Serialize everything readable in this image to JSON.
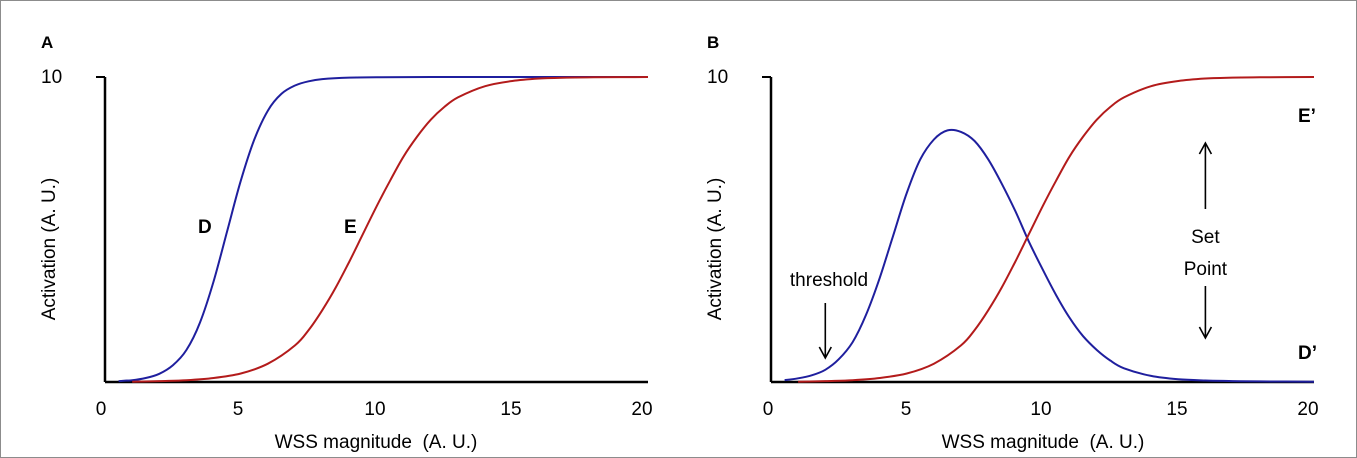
{
  "chart_data": [
    {
      "type": "line",
      "panel": "A",
      "xlabel": "WSS magnitude  (A. U.)",
      "ylabel": "Activation (A. U.)",
      "xlim": [
        0,
        20
      ],
      "ylim": [
        0,
        10
      ],
      "x_ticks": [
        "0",
        "5",
        "10",
        "15",
        "20"
      ],
      "y_ticks": [
        "10"
      ],
      "grid": false,
      "series": [
        {
          "name": "D",
          "color": "#1f1f9e",
          "x": [
            0.5,
            1,
            1.5,
            2,
            2.5,
            3,
            3.5,
            4,
            4.5,
            5,
            5.5,
            6,
            6.5,
            7,
            7.5,
            8,
            9,
            10,
            12,
            15,
            20
          ],
          "y": [
            0.03,
            0.06,
            0.13,
            0.27,
            0.55,
            1.05,
            1.95,
            3.3,
            4.95,
            6.6,
            7.95,
            8.9,
            9.45,
            9.72,
            9.86,
            9.93,
            9.98,
            9.99,
            10,
            10,
            10
          ]
        },
        {
          "name": "E",
          "color": "#b31b1b",
          "x": [
            1,
            2,
            3,
            4,
            5,
            6,
            7,
            7.5,
            8,
            8.5,
            9,
            9.5,
            10,
            10.5,
            11,
            11.5,
            12,
            12.5,
            13,
            14,
            15,
            16,
            17,
            18,
            20
          ],
          "y": [
            0.01,
            0.03,
            0.06,
            0.13,
            0.28,
            0.6,
            1.2,
            1.7,
            2.35,
            3.1,
            3.95,
            4.85,
            5.75,
            6.6,
            7.4,
            8.05,
            8.6,
            9.02,
            9.33,
            9.7,
            9.87,
            9.95,
            9.98,
            9.99,
            10
          ]
        }
      ]
    },
    {
      "type": "line",
      "panel": "B",
      "xlabel": "WSS magnitude  (A. U.)",
      "ylabel": "Activation (A. U.)",
      "xlim": [
        0,
        20
      ],
      "ylim": [
        0,
        10
      ],
      "x_ticks": [
        "0",
        "5",
        "10",
        "15",
        "20"
      ],
      "y_ticks": [
        "10"
      ],
      "grid": false,
      "series": [
        {
          "name": "D’",
          "color": "#1f1f9e",
          "x": [
            0.5,
            1,
            1.5,
            2,
            2.5,
            3,
            3.5,
            4,
            4.5,
            5,
            5.5,
            6,
            6.5,
            7,
            7.5,
            8,
            8.5,
            9,
            9.5,
            10,
            10.5,
            11,
            11.5,
            12,
            12.5,
            13,
            14,
            15,
            16,
            17,
            18,
            20
          ],
          "y": [
            0.06,
            0.12,
            0.22,
            0.4,
            0.75,
            1.3,
            2.2,
            3.4,
            4.8,
            6.2,
            7.3,
            7.95,
            8.25,
            8.2,
            7.9,
            7.3,
            6.5,
            5.6,
            4.6,
            3.7,
            2.85,
            2.1,
            1.5,
            1.05,
            0.7,
            0.45,
            0.2,
            0.09,
            0.05,
            0.03,
            0.02,
            0.01
          ]
        },
        {
          "name": "E’",
          "color": "#b31b1b",
          "x": [
            1,
            2,
            3,
            4,
            5,
            6,
            7,
            7.5,
            8,
            8.5,
            9,
            9.5,
            10,
            10.5,
            11,
            11.5,
            12,
            12.5,
            13,
            14,
            15,
            16,
            17,
            18,
            20
          ],
          "y": [
            0.01,
            0.03,
            0.06,
            0.13,
            0.28,
            0.6,
            1.2,
            1.7,
            2.35,
            3.1,
            3.95,
            4.85,
            5.75,
            6.6,
            7.4,
            8.05,
            8.6,
            9.02,
            9.33,
            9.7,
            9.87,
            9.95,
            9.98,
            9.99,
            10
          ]
        }
      ],
      "annotations": {
        "threshold": "threshold",
        "threshold_x": 2,
        "set_point_line1": "Set",
        "set_point_line2": "Point",
        "set_point_x": 16
      }
    }
  ]
}
